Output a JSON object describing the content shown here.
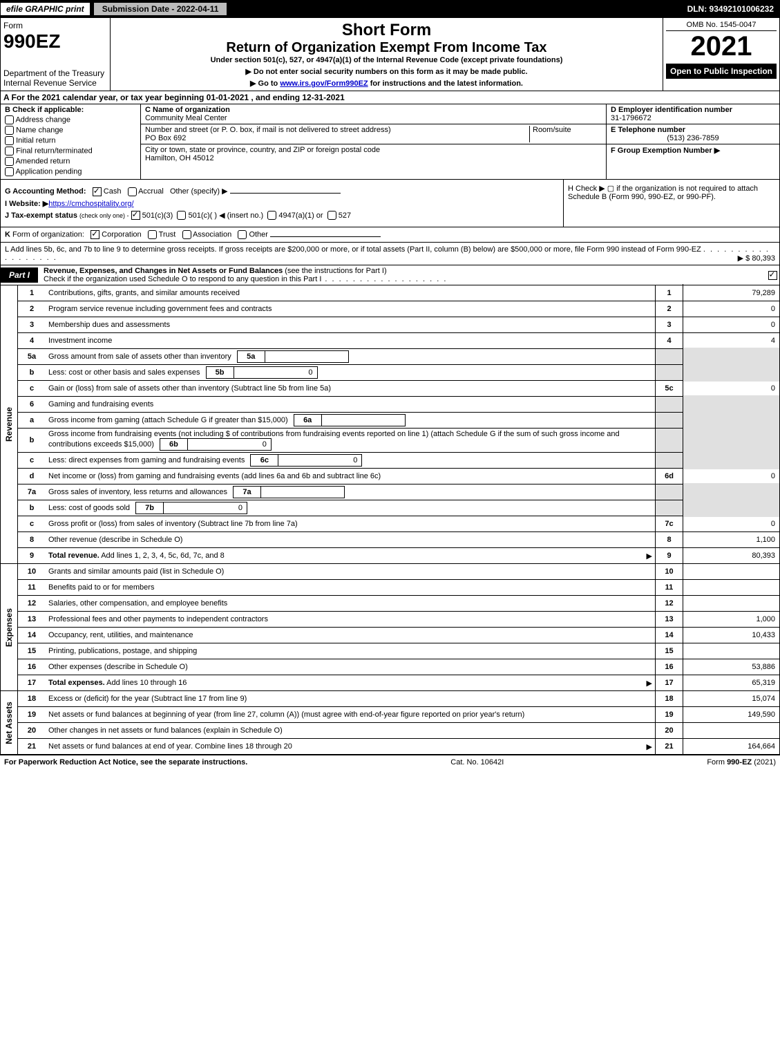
{
  "colors": {
    "black": "#000000",
    "white": "#ffffff",
    "grey_btn": "#bbbbbb",
    "shaded_cell": "#e0e0e0",
    "link": "#0000cc"
  },
  "top": {
    "efile": "efile GRAPHIC print",
    "submission": "Submission Date - 2022-04-11",
    "dln": "DLN: 93492101006232"
  },
  "header": {
    "form_word": "Form",
    "form_num": "990EZ",
    "dept": "Department of the Treasury\nInternal Revenue Service",
    "short": "Short Form",
    "title": "Return of Organization Exempt From Income Tax",
    "sub": "Under section 501(c), 527, or 4947(a)(1) of the Internal Revenue Code (except private foundations)",
    "warn": "▶ Do not enter social security numbers on this form as it may be made public.",
    "goto_pre": "▶ Go to ",
    "goto_link": "www.irs.gov/Form990EZ",
    "goto_post": " for instructions and the latest information.",
    "omb": "OMB No. 1545-0047",
    "year": "2021",
    "open": "Open to Public Inspection"
  },
  "row_a": "A  For the 2021 calendar year, or tax year beginning 01-01-2021 , and ending 12-31-2021",
  "section_b": {
    "label": "B  Check if applicable:",
    "opts": [
      "Address change",
      "Name change",
      "Initial return",
      "Final return/terminated",
      "Amended return",
      "Application pending"
    ],
    "c_label": "C Name of organization",
    "c_name": "Community Meal Center",
    "addr_label": "Number and street (or P. O. box, if mail is not delivered to street address)",
    "room": "Room/suite",
    "addr": "PO Box 692",
    "city_label": "City or town, state or province, country, and ZIP or foreign postal code",
    "city": "Hamilton, OH  45012",
    "d_label": "D Employer identification number",
    "d_val": "31-1796672",
    "e_label": "E Telephone number",
    "e_val": "(513) 236-7859",
    "f_label": "F Group Exemption Number   ▶"
  },
  "gh": {
    "g_label": "G Accounting Method:",
    "g_cash": "Cash",
    "g_accrual": "Accrual",
    "g_other": "Other (specify) ▶",
    "i_label": "I Website: ▶",
    "i_link": "https://cmchospitality.org/",
    "j_label": "J Tax-exempt status",
    "j_note": "(check only one) -",
    "j_1": "501(c)(3)",
    "j_2": "501(c)(  ) ◀ (insert no.)",
    "j_3": "4947(a)(1) or",
    "j_4": "527",
    "h_text": "H  Check ▶  ▢  if the organization is not required to attach Schedule B (Form 990, 990-EZ, or 990-PF)."
  },
  "line_k": "K Form of organization:   ☑ Corporation   ▢ Trust   ▢ Association   ▢ Other",
  "line_l_text": "L Add lines 5b, 6c, and 7b to line 9 to determine gross receipts. If gross receipts are $200,000 or more, or if total assets (Part II, column (B) below) are $500,000 or more, file Form 990 instead of Form 990-EZ",
  "line_l_amt": "▶ $ 80,393",
  "part1": {
    "label": "Part I",
    "title_bold": "Revenue, Expenses, and Changes in Net Assets or Fund Balances",
    "title_rest": " (see the instructions for Part I)",
    "check_text": "Check if the organization used Schedule O to respond to any question in this Part I"
  },
  "revenue": {
    "side": "Revenue",
    "rows": [
      {
        "n": "1",
        "desc": "Contributions, gifts, grants, and similar amounts received",
        "rnum": "1",
        "val": "79,289"
      },
      {
        "n": "2",
        "desc": "Program service revenue including government fees and contracts",
        "rnum": "2",
        "val": "0"
      },
      {
        "n": "3",
        "desc": "Membership dues and assessments",
        "rnum": "3",
        "val": "0"
      },
      {
        "n": "4",
        "desc": "Investment income",
        "rnum": "4",
        "val": "4"
      },
      {
        "n": "5a",
        "desc": "Gross amount from sale of assets other than inventory",
        "inner_n": "5a",
        "inner_v": "",
        "shaded": true
      },
      {
        "n": "b",
        "desc": "Less: cost or other basis and sales expenses",
        "inner_n": "5b",
        "inner_v": "0",
        "shaded": true
      },
      {
        "n": "c",
        "desc": "Gain or (loss) from sale of assets other than inventory (Subtract line 5b from line 5a)",
        "rnum": "5c",
        "val": "0"
      },
      {
        "n": "6",
        "desc": "Gaming and fundraising events",
        "shaded": true
      },
      {
        "n": "a",
        "desc": "Gross income from gaming (attach Schedule G if greater than $15,000)",
        "inner_n": "6a",
        "inner_v": "",
        "shaded": true
      },
      {
        "n": "b",
        "desc": "Gross income from fundraising events (not including $                   of contributions from fundraising events reported on line 1) (attach Schedule G if the sum of such gross income and contributions exceeds $15,000)",
        "inner_n": "6b",
        "inner_v": "0",
        "shaded": true
      },
      {
        "n": "c",
        "desc": "Less: direct expenses from gaming and fundraising events",
        "inner_n": "6c",
        "inner_v": "0",
        "shaded": true
      },
      {
        "n": "d",
        "desc": "Net income or (loss) from gaming and fundraising events (add lines 6a and 6b and subtract line 6c)",
        "rnum": "6d",
        "val": "0"
      },
      {
        "n": "7a",
        "desc": "Gross sales of inventory, less returns and allowances",
        "inner_n": "7a",
        "inner_v": "",
        "shaded": true
      },
      {
        "n": "b",
        "desc": "Less: cost of goods sold",
        "inner_n": "7b",
        "inner_v": "0",
        "shaded": true
      },
      {
        "n": "c",
        "desc": "Gross profit or (loss) from sales of inventory (Subtract line 7b from line 7a)",
        "rnum": "7c",
        "val": "0"
      },
      {
        "n": "8",
        "desc": "Other revenue (describe in Schedule O)",
        "rnum": "8",
        "val": "1,100"
      },
      {
        "n": "9",
        "desc": "Total revenue. Add lines 1, 2, 3, 4, 5c, 6d, 7c, and 8",
        "rnum": "9",
        "val": "80,393",
        "bold": true,
        "arrow": true
      }
    ]
  },
  "expenses": {
    "side": "Expenses",
    "rows": [
      {
        "n": "10",
        "desc": "Grants and similar amounts paid (list in Schedule O)",
        "rnum": "10",
        "val": ""
      },
      {
        "n": "11",
        "desc": "Benefits paid to or for members",
        "rnum": "11",
        "val": ""
      },
      {
        "n": "12",
        "desc": "Salaries, other compensation, and employee benefits",
        "rnum": "12",
        "val": ""
      },
      {
        "n": "13",
        "desc": "Professional fees and other payments to independent contractors",
        "rnum": "13",
        "val": "1,000"
      },
      {
        "n": "14",
        "desc": "Occupancy, rent, utilities, and maintenance",
        "rnum": "14",
        "val": "10,433"
      },
      {
        "n": "15",
        "desc": "Printing, publications, postage, and shipping",
        "rnum": "15",
        "val": ""
      },
      {
        "n": "16",
        "desc": "Other expenses (describe in Schedule O)",
        "rnum": "16",
        "val": "53,886"
      },
      {
        "n": "17",
        "desc": "Total expenses. Add lines 10 through 16",
        "rnum": "17",
        "val": "65,319",
        "bold": true,
        "arrow": true
      }
    ]
  },
  "netassets": {
    "side": "Net Assets",
    "rows": [
      {
        "n": "18",
        "desc": "Excess or (deficit) for the year (Subtract line 17 from line 9)",
        "rnum": "18",
        "val": "15,074"
      },
      {
        "n": "19",
        "desc": "Net assets or fund balances at beginning of year (from line 27, column (A)) (must agree with end-of-year figure reported on prior year's return)",
        "rnum": "19",
        "val": "149,590"
      },
      {
        "n": "20",
        "desc": "Other changes in net assets or fund balances (explain in Schedule O)",
        "rnum": "20",
        "val": ""
      },
      {
        "n": "21",
        "desc": "Net assets or fund balances at end of year. Combine lines 18 through 20",
        "rnum": "21",
        "val": "164,664",
        "arrow": true
      }
    ]
  },
  "footer": {
    "left": "For Paperwork Reduction Act Notice, see the separate instructions.",
    "mid": "Cat. No. 10642I",
    "right_pre": "Form ",
    "right_bold": "990-EZ",
    "right_post": " (2021)"
  }
}
